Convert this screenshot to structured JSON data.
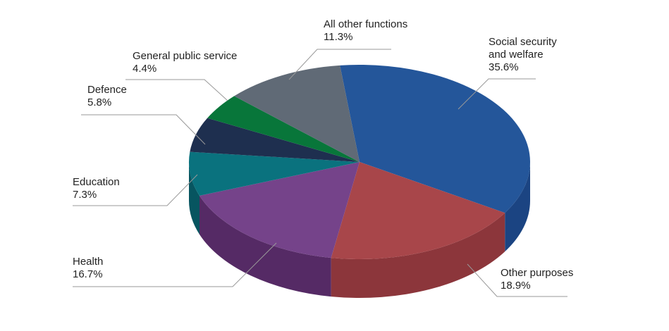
{
  "chart_data": {
    "type": "pie",
    "style": "3d",
    "slices": [
      {
        "label": "Social security and welfare",
        "label_lines": [
          "Social security",
          "and welfare"
        ],
        "value": 35.6,
        "value_label": "35.6%",
        "color": "#24569a",
        "side_color": "#1b4482"
      },
      {
        "label": "Other purposes",
        "label_lines": [
          "Other purposes"
        ],
        "value": 18.9,
        "value_label": "18.9%",
        "color": "#a8464a",
        "side_color": "#8c363b"
      },
      {
        "label": "Health",
        "label_lines": [
          "Health"
        ],
        "value": 16.7,
        "value_label": "16.7%",
        "color": "#75438a",
        "side_color": "#552a65"
      },
      {
        "label": "Education",
        "label_lines": [
          "Education"
        ],
        "value": 7.3,
        "value_label": "7.3%",
        "color": "#0a727e",
        "side_color": "#075560"
      },
      {
        "label": "Defence",
        "label_lines": [
          "Defence"
        ],
        "value": 5.8,
        "value_label": "5.8%",
        "color": "#1e2f4f",
        "side_color": "#16233c"
      },
      {
        "label": "General public service",
        "label_lines": [
          "General public service"
        ],
        "value": 4.4,
        "value_label": "4.4%",
        "color": "#08763a",
        "side_color": "#065a2c"
      },
      {
        "label": "All other functions",
        "label_lines": [
          "All other functions"
        ],
        "value": 11.3,
        "value_label": "11.3%",
        "color": "#606a76",
        "side_color": "#4a525c"
      }
    ],
    "leader_line_color": "#999999"
  }
}
